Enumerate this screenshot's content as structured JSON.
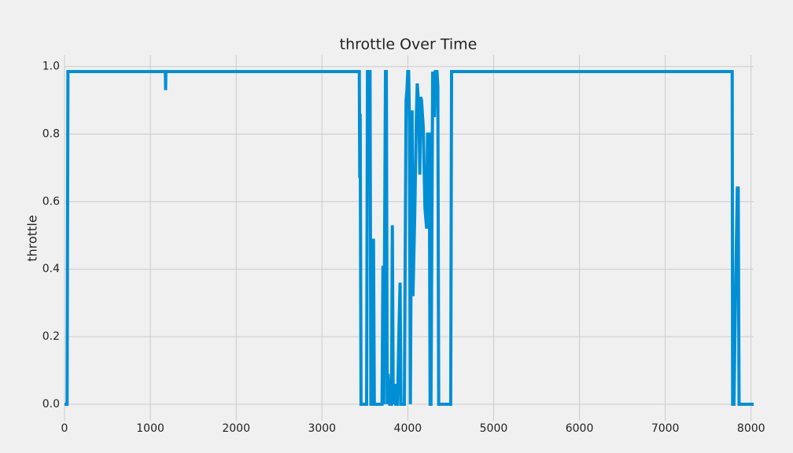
{
  "chart_data": {
    "type": "line",
    "title": "throttle Over Time",
    "y_label": "throttle",
    "x": [
      0,
      30,
      40,
      1175,
      1178,
      1181,
      3435,
      3440,
      3445,
      3455,
      3520,
      3530,
      3560,
      3570,
      3590,
      3600,
      3610,
      3700,
      3710,
      3720,
      3740,
      3750,
      3760,
      3770,
      3790,
      3810,
      3820,
      3830,
      3850,
      3860,
      3880,
      3900,
      3910,
      3920,
      3960,
      3980,
      3990,
      4000,
      4010,
      4020,
      4030,
      4040,
      4050,
      4060,
      4080,
      4100,
      4110,
      4130,
      4140,
      4150,
      4160,
      4180,
      4200,
      4220,
      4230,
      4250,
      4260,
      4270,
      4290,
      4310,
      4320,
      4340,
      4350,
      4360,
      4500,
      4510,
      7780,
      7785,
      7800,
      7820,
      7840,
      7850,
      7860,
      8030
    ],
    "values": [
      0,
      0,
      0.985,
      0.985,
      0.93,
      0.985,
      0.985,
      0.67,
      0.86,
      0,
      0,
      0.985,
      0.985,
      0,
      0,
      0.49,
      0,
      0,
      0.41,
      0,
      0.985,
      0.985,
      0,
      0.09,
      0,
      0,
      0.53,
      0,
      0.06,
      0,
      0,
      0.25,
      0.36,
      0,
      0,
      0.9,
      0.93,
      0.985,
      0.985,
      0.82,
      0,
      0.5,
      0.87,
      0.32,
      0.55,
      0.85,
      0.95,
      0.87,
      0.68,
      0.91,
      0.9,
      0.82,
      0.58,
      0.52,
      0.8,
      0.8,
      0,
      0,
      0.985,
      0.85,
      0.985,
      0.985,
      0.94,
      0,
      0,
      0.985,
      0.985,
      0,
      0,
      0.35,
      0.64,
      0.64,
      0,
      0
    ],
    "color": "#008fd5",
    "xlim": [
      0,
      8030
    ],
    "ylim": [
      -0.049,
      1.034
    ],
    "xticks": [
      0,
      1000,
      2000,
      3000,
      4000,
      5000,
      6000,
      7000,
      8000
    ],
    "yticks": [
      {
        "value": 0,
        "label": "0.0"
      },
      0.2,
      0.4,
      0.6,
      0.8,
      {
        "value": 1,
        "label": "1.0"
      }
    ],
    "grid": true
  }
}
